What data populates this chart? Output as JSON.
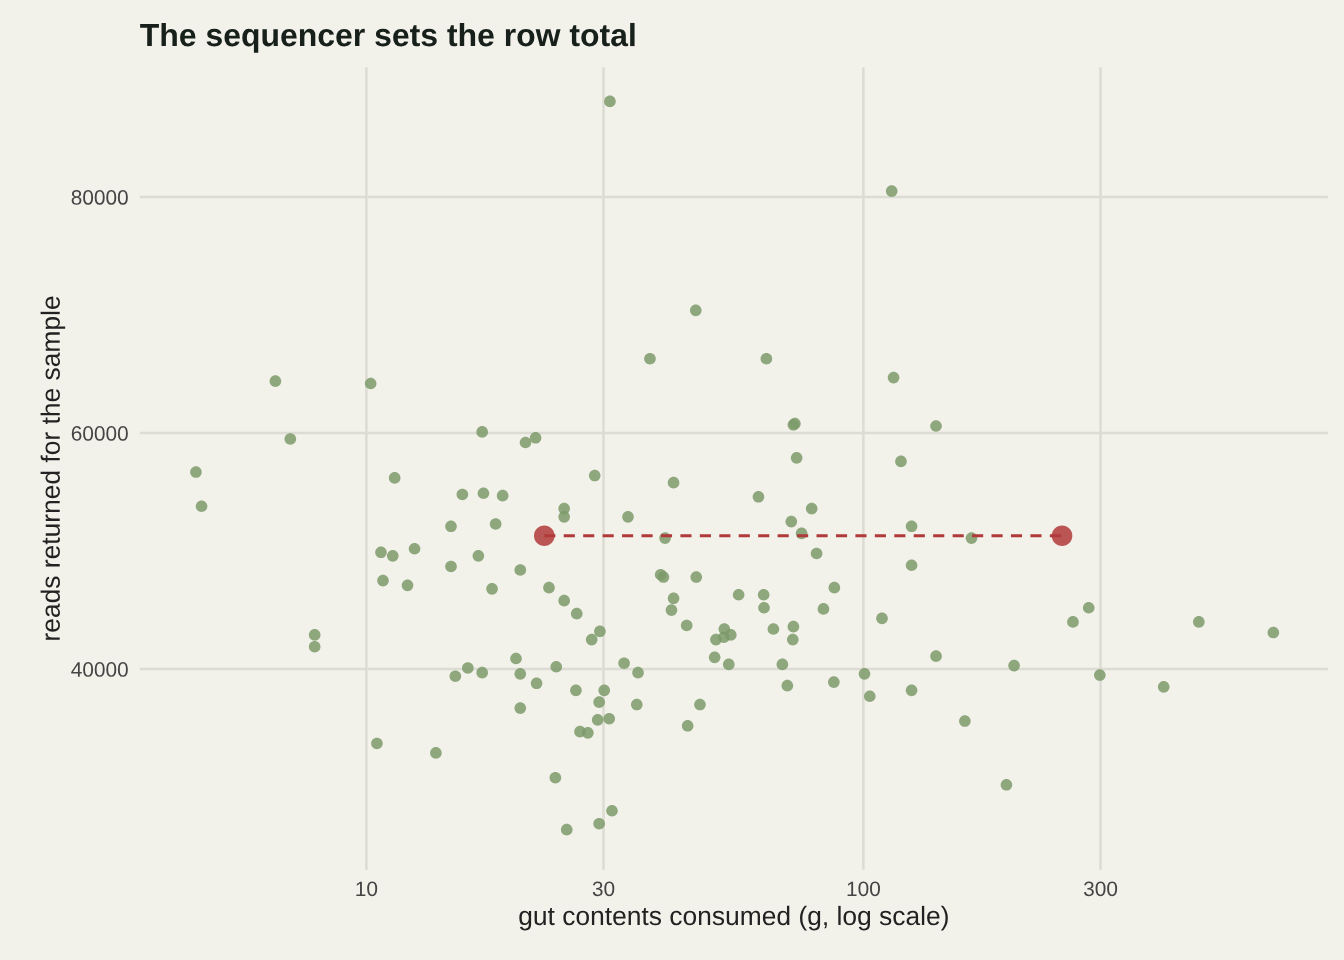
{
  "chart_data": {
    "type": "scatter",
    "title": "The sequencer sets the row total",
    "xlabel": "gut contents consumed (g, log scale)",
    "ylabel": "reads returned for the sample",
    "log": "x",
    "grid": true,
    "xlim": [
      3.5,
      860
    ],
    "xticks": [
      10,
      30,
      100,
      300
    ],
    "ylim": [
      23000,
      91000
    ],
    "yticks": [
      40000,
      60000,
      80000
    ],
    "series": [
      {
        "color": "#7d9a6a",
        "marker": "circle",
        "x": [
          4.54,
          4.66,
          6.56,
          7.03,
          7.87,
          7.87,
          10.2,
          10.5,
          11.4,
          10.7,
          10.8,
          11.3,
          12.1,
          12.5,
          13.8,
          14.8,
          14.8,
          15.6,
          15.1,
          16.0,
          17.1,
          17.2,
          17.1,
          16.8,
          18.2,
          17.9,
          18.8,
          20.0,
          20.4,
          20.4,
          20.4,
          20.9,
          21.9,
          22.0,
          23.3,
          24.1,
          24.0,
          25.0,
          25.0,
          25.0,
          25.3,
          26.5,
          26.4,
          26.9,
          27.9,
          28.4,
          28.8,
          29.5,
          29.4,
          29.2,
          29.4,
          30.1,
          30.8,
          31.2,
          30.9,
          33.0,
          33.6,
          35.2,
          35.0,
          37.2,
          39.1,
          39.6,
          39.9,
          41.1,
          41.5,
          41.5,
          44.1,
          44.3,
          46.0,
          46.1,
          46.9,
          50.2,
          50.5,
          52.4,
          52.5,
          53.6,
          54.1,
          56.1,
          61.5,
          63.0,
          63.1,
          63.8,
          65.9,
          68.7,
          70.3,
          71.6,
          72.1,
          72.3,
          72.3,
          72.8,
          73.4,
          75.1,
          78.7,
          80.5,
          83.1,
          87.4,
          87.2,
          100.5,
          103,
          109,
          114,
          115,
          119,
          125,
          125,
          125,
          140,
          140,
          160,
          165,
          194,
          201,
          264,
          284,
          299,
          402,
          473,
          668
        ],
        "values": [
          56700,
          53800,
          64400,
          59500,
          42900,
          41900,
          64200,
          33700,
          56200,
          49900,
          47500,
          49600,
          47100,
          50200,
          32900,
          52100,
          48700,
          54800,
          39400,
          40100,
          60100,
          54900,
          39700,
          49600,
          52300,
          46800,
          54700,
          40900,
          48400,
          39600,
          36700,
          59200,
          59600,
          38800,
          46900,
          40200,
          30800,
          53600,
          52900,
          45800,
          26400,
          44700,
          38200,
          34700,
          34600,
          42500,
          56400,
          43200,
          37200,
          35700,
          26900,
          38200,
          35800,
          28000,
          88100,
          40500,
          52900,
          39700,
          37000,
          66300,
          48000,
          47800,
          51100,
          45000,
          46000,
          55800,
          43700,
          35200,
          70400,
          47800,
          37000,
          41000,
          42500,
          42700,
          43400,
          40400,
          42900,
          46300,
          54600,
          46300,
          45200,
          66300,
          43400,
          40400,
          38600,
          52500,
          42500,
          43600,
          60700,
          60800,
          57900,
          51500,
          53600,
          49800,
          45100,
          46900,
          38900,
          39600,
          37700,
          44300,
          80500,
          64700,
          57600,
          52100,
          48800,
          38200,
          60600,
          41100,
          35600,
          51100,
          30200,
          40300,
          44000,
          45200,
          39500,
          38500,
          44000,
          43100
        ]
      },
      {
        "type": "line",
        "color": "#b03a3a",
        "marker": "circle",
        "line_style": "dashed",
        "x": [
          22.8,
          251
        ],
        "values": [
          51300,
          51300
        ]
      }
    ]
  }
}
